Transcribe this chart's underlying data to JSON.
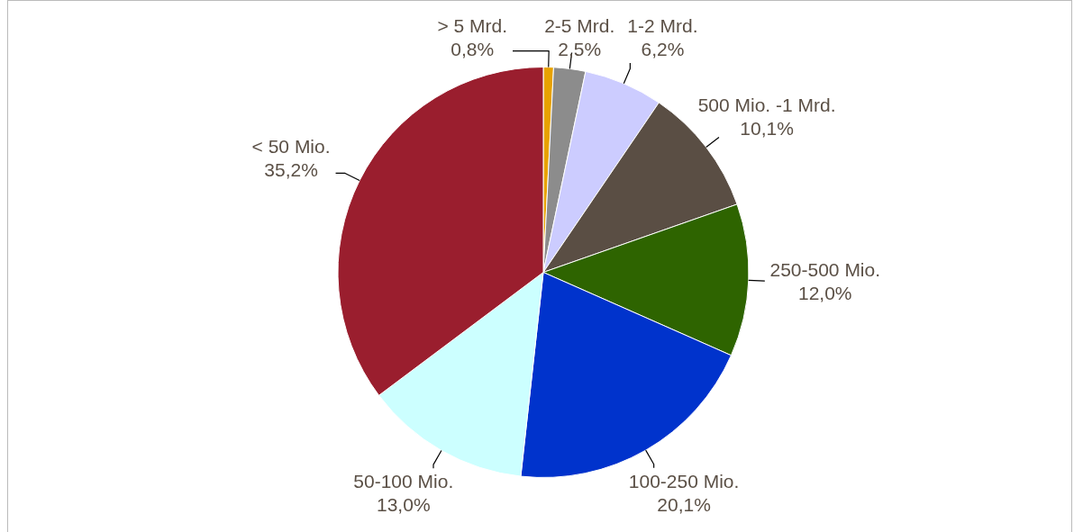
{
  "chart_data": {
    "type": "pie",
    "categories": [
      "> 5 Mrd.",
      "2-5 Mrd.",
      "1-2 Mrd.",
      "500 Mio. -1 Mrd.",
      "250-500 Mio.",
      "100-250 Mio.",
      "50-100 Mio.",
      "< 50 Mio."
    ],
    "values": [
      0.8,
      2.5,
      6.2,
      10.1,
      12.0,
      20.1,
      13.0,
      35.2
    ],
    "value_labels": [
      "0,8%",
      "2,5%",
      "6,2%",
      "10,1%",
      "12,0%",
      "20,1%",
      "13,0%",
      "35,2%"
    ],
    "colors": [
      "#e8a200",
      "#8c8c8c",
      "#ccccff",
      "#5a4e44",
      "#2e6400",
      "#0033cc",
      "#ccffff",
      "#9a1e2e"
    ],
    "legend": false
  }
}
